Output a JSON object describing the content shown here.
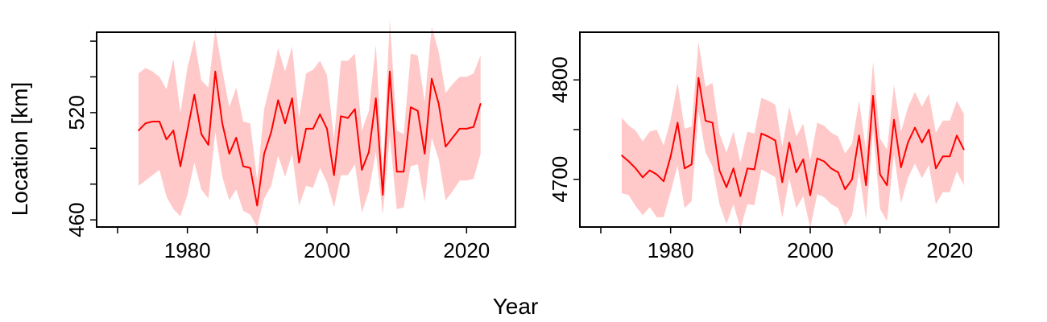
{
  "figure": {
    "ylabel": "Location [km]",
    "xlabel": "Year"
  },
  "chart_data": [
    {
      "type": "line",
      "panel": "left",
      "x_ticks": [
        "1980",
        "2000",
        "2020"
      ],
      "y_ticks": [
        "460",
        "520"
      ],
      "xlim": [
        1967,
        2027
      ],
      "ylim": [
        456,
        565
      ],
      "grid": false,
      "colors": {
        "line": "#ff0000",
        "band": "#ffc9c9"
      },
      "series": [
        {
          "x": [
            1973,
            1974,
            1975,
            1976,
            1977,
            1978,
            1979,
            1980,
            1981,
            1982,
            1983,
            1984,
            1985,
            1986,
            1987,
            1988,
            1989,
            1990,
            1991,
            1992,
            1993,
            1994,
            1995,
            1996,
            1997,
            1998,
            1999,
            2000,
            2001,
            2002,
            2003,
            2004,
            2005,
            2006,
            2007,
            2008,
            2009,
            2010,
            2011,
            2012,
            2013,
            2014,
            2015,
            2016,
            2017,
            2018,
            2019,
            2020,
            2021,
            2022
          ],
          "values": [
            510,
            514,
            515,
            515,
            505,
            510,
            490,
            510,
            530,
            508,
            502,
            543,
            514,
            497,
            506,
            490,
            489,
            468,
            497,
            509,
            527,
            514,
            528,
            492,
            511,
            511,
            519,
            511,
            485,
            518,
            517,
            522,
            488,
            498,
            528,
            474,
            543,
            487,
            487,
            523,
            521,
            497,
            539,
            525,
            501,
            506,
            511,
            511,
            512,
            525
          ],
          "lower": [
            479,
            482,
            485,
            488,
            473,
            466,
            462,
            474,
            492,
            477,
            472,
            509,
            484,
            471,
            477,
            465,
            463,
            456,
            472,
            479,
            496,
            484,
            497,
            468,
            479,
            478,
            489,
            481,
            467,
            485,
            485,
            491,
            464,
            476,
            498,
            463,
            507,
            466,
            467,
            490,
            491,
            470,
            506,
            494,
            471,
            476,
            482,
            482,
            483,
            497
          ],
          "upper": [
            542,
            545,
            543,
            540,
            533,
            550,
            520,
            545,
            561,
            538,
            534,
            567,
            544,
            523,
            534,
            515,
            514,
            482,
            522,
            538,
            556,
            543,
            557,
            517,
            542,
            544,
            549,
            541,
            505,
            549,
            549,
            553,
            510,
            521,
            558,
            487,
            572,
            510,
            508,
            553,
            552,
            526,
            568,
            554,
            531,
            536,
            540,
            540,
            542,
            552
          ]
        }
      ]
    },
    {
      "type": "line",
      "panel": "right",
      "x_ticks": [
        "1980",
        "2000",
        "2020"
      ],
      "y_ticks": [
        "4700",
        "4800"
      ],
      "xlim": [
        1967,
        2027
      ],
      "ylim": [
        4652,
        4848
      ],
      "grid": false,
      "colors": {
        "line": "#ff0000",
        "band": "#ffc9c9"
      },
      "series": [
        {
          "x": [
            1973,
            1974,
            1975,
            1976,
            1977,
            1978,
            1979,
            1980,
            1981,
            1982,
            1983,
            1984,
            1985,
            1986,
            1987,
            1988,
            1989,
            1990,
            1991,
            1992,
            1993,
            1994,
            1995,
            1996,
            1997,
            1998,
            1999,
            2000,
            2001,
            2002,
            2003,
            2004,
            2005,
            2006,
            2007,
            2008,
            2009,
            2010,
            2011,
            2012,
            2013,
            2014,
            2015,
            2016,
            2017,
            2018,
            2019,
            2020,
            2021,
            2022
          ],
          "values": [
            4724,
            4718,
            4711,
            4702,
            4709,
            4705,
            4698,
            4723,
            4757,
            4711,
            4715,
            4802,
            4759,
            4757,
            4709,
            4692,
            4711,
            4683,
            4711,
            4710,
            4746,
            4743,
            4739,
            4697,
            4737,
            4707,
            4720,
            4684,
            4721,
            4718,
            4711,
            4707,
            4690,
            4700,
            4744,
            4694,
            4784,
            4705,
            4694,
            4760,
            4712,
            4737,
            4752,
            4737,
            4750,
            4711,
            4723,
            4723,
            4744,
            4730
          ],
          "lower": [
            4686,
            4684,
            4673,
            4664,
            4672,
            4662,
            4662,
            4687,
            4714,
            4671,
            4678,
            4768,
            4727,
            4713,
            4675,
            4655,
            4675,
            4650,
            4675,
            4674,
            4710,
            4706,
            4702,
            4661,
            4701,
            4671,
            4683,
            4651,
            4685,
            4682,
            4675,
            4671,
            4653,
            4664,
            4708,
            4660,
            4750,
            4670,
            4658,
            4725,
            4676,
            4701,
            4716,
            4701,
            4714,
            4675,
            4687,
            4687,
            4708,
            4694
          ],
          "upper": [
            4762,
            4754,
            4749,
            4738,
            4748,
            4750,
            4734,
            4760,
            4797,
            4751,
            4753,
            4838,
            4793,
            4797,
            4746,
            4727,
            4748,
            4717,
            4748,
            4746,
            4782,
            4779,
            4775,
            4733,
            4773,
            4743,
            4756,
            4719,
            4757,
            4754,
            4747,
            4743,
            4726,
            4736,
            4779,
            4729,
            4818,
            4741,
            4730,
            4795,
            4748,
            4772,
            4788,
            4773,
            4786,
            4747,
            4759,
            4759,
            4779,
            4766
          ]
        }
      ]
    }
  ]
}
